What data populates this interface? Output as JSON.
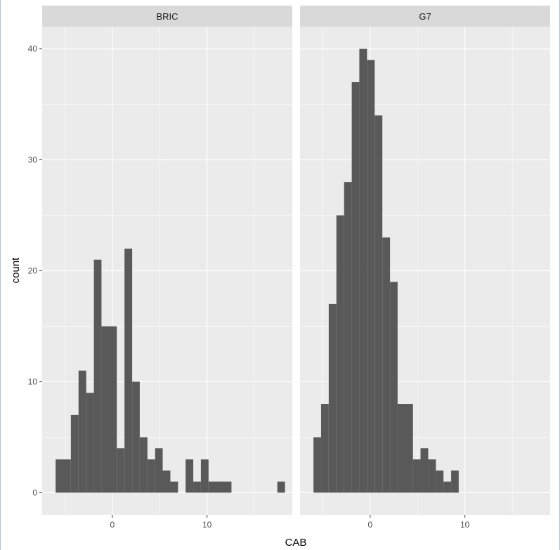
{
  "chart_data": {
    "type": "bar",
    "subtype": "faceted-histogram",
    "xlabel": "CAB",
    "ylabel": "count",
    "xlim": [
      -7.4,
      19.0
    ],
    "ylim": [
      -2.0,
      42.0
    ],
    "x_ticks": [
      0,
      10
    ],
    "y_ticks": [
      0,
      10,
      20,
      30,
      40
    ],
    "x_tick_labels": [
      "0",
      "10"
    ],
    "y_tick_labels": [
      "0",
      "10",
      "20",
      "30",
      "40"
    ],
    "binwidth": 0.806,
    "grid": true,
    "colors": {
      "panel_bg": "#EBEBEB",
      "strip_bg": "#D9D9D9",
      "bar": "#595959",
      "grid": "#FFFFFF"
    },
    "facets": [
      {
        "name": "BRIC",
        "bins": [
          {
            "x0": -5.98,
            "x1": -4.37,
            "count": 3
          },
          {
            "x0": -4.37,
            "x1": -3.56,
            "count": 7
          },
          {
            "x0": -3.56,
            "x1": -2.75,
            "count": 11
          },
          {
            "x0": -2.75,
            "x1": -1.94,
            "count": 9
          },
          {
            "x0": -1.94,
            "x1": -1.14,
            "count": 21
          },
          {
            "x0": -1.14,
            "x1": 0.48,
            "count": 15
          },
          {
            "x0": 0.48,
            "x1": 1.29,
            "count": 4
          },
          {
            "x0": 1.29,
            "x1": 2.1,
            "count": 22
          },
          {
            "x0": 2.1,
            "x1": 2.9,
            "count": 10
          },
          {
            "x0": 2.9,
            "x1": 3.71,
            "count": 5
          },
          {
            "x0": 3.71,
            "x1": 4.52,
            "count": 3
          },
          {
            "x0": 4.52,
            "x1": 5.32,
            "count": 4
          },
          {
            "x0": 5.32,
            "x1": 6.13,
            "count": 2
          },
          {
            "x0": 6.13,
            "x1": 6.94,
            "count": 1
          },
          {
            "x0": 7.74,
            "x1": 8.55,
            "count": 3
          },
          {
            "x0": 8.55,
            "x1": 9.35,
            "count": 1
          },
          {
            "x0": 9.35,
            "x1": 10.16,
            "count": 3
          },
          {
            "x0": 10.16,
            "x1": 12.58,
            "count": 1
          },
          {
            "x0": 17.42,
            "x1": 18.23,
            "count": 1
          }
        ]
      },
      {
        "name": "G7",
        "bins": [
          {
            "x0": -5.98,
            "x1": -5.18,
            "count": 5
          },
          {
            "x0": -5.18,
            "x1": -4.37,
            "count": 8
          },
          {
            "x0": -4.37,
            "x1": -3.56,
            "count": 17
          },
          {
            "x0": -3.56,
            "x1": -2.75,
            "count": 25
          },
          {
            "x0": -2.75,
            "x1": -1.94,
            "count": 28
          },
          {
            "x0": -1.94,
            "x1": -1.14,
            "count": 37
          },
          {
            "x0": -1.14,
            "x1": -0.33,
            "count": 40
          },
          {
            "x0": -0.33,
            "x1": 0.48,
            "count": 39
          },
          {
            "x0": 0.48,
            "x1": 1.29,
            "count": 34
          },
          {
            "x0": 1.29,
            "x1": 2.1,
            "count": 23
          },
          {
            "x0": 2.1,
            "x1": 2.9,
            "count": 19
          },
          {
            "x0": 2.9,
            "x1": 4.52,
            "count": 8
          },
          {
            "x0": 4.52,
            "x1": 5.32,
            "count": 3
          },
          {
            "x0": 5.32,
            "x1": 6.13,
            "count": 4
          },
          {
            "x0": 6.13,
            "x1": 6.94,
            "count": 3
          },
          {
            "x0": 6.94,
            "x1": 7.74,
            "count": 2
          },
          {
            "x0": 7.74,
            "x1": 8.55,
            "count": 1
          },
          {
            "x0": 8.55,
            "x1": 9.35,
            "count": 2
          }
        ]
      }
    ]
  }
}
